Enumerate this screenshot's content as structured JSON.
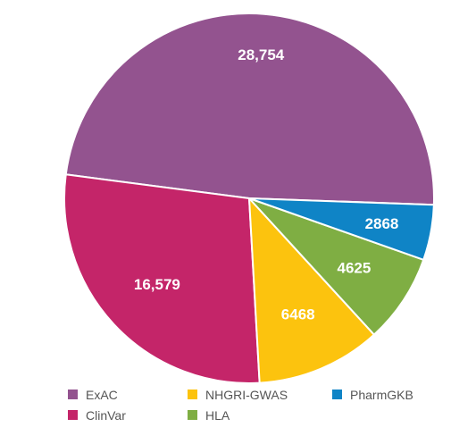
{
  "chart_data": {
    "type": "pie",
    "slices": [
      {
        "name": "ExAC",
        "value": 28754,
        "label": "28,754",
        "color": "#93538F"
      },
      {
        "name": "ClinVar",
        "value": 16579,
        "label": "16,579",
        "color": "#C42569"
      },
      {
        "name": "NHGRI-GWAS",
        "value": 6468,
        "label": "6468",
        "color": "#FCC30E"
      },
      {
        "name": "HLA",
        "value": 4625,
        "label": "4625",
        "color": "#7FAE43"
      },
      {
        "name": "PharmGKB",
        "value": 2868,
        "label": "2868",
        "color": "#0F84C6"
      }
    ],
    "legend_position": "bottom",
    "legend_order": [
      "ExAC",
      "NHGRI-GWAS",
      "PharmGKB",
      "ClinVar",
      "HLA"
    ]
  }
}
